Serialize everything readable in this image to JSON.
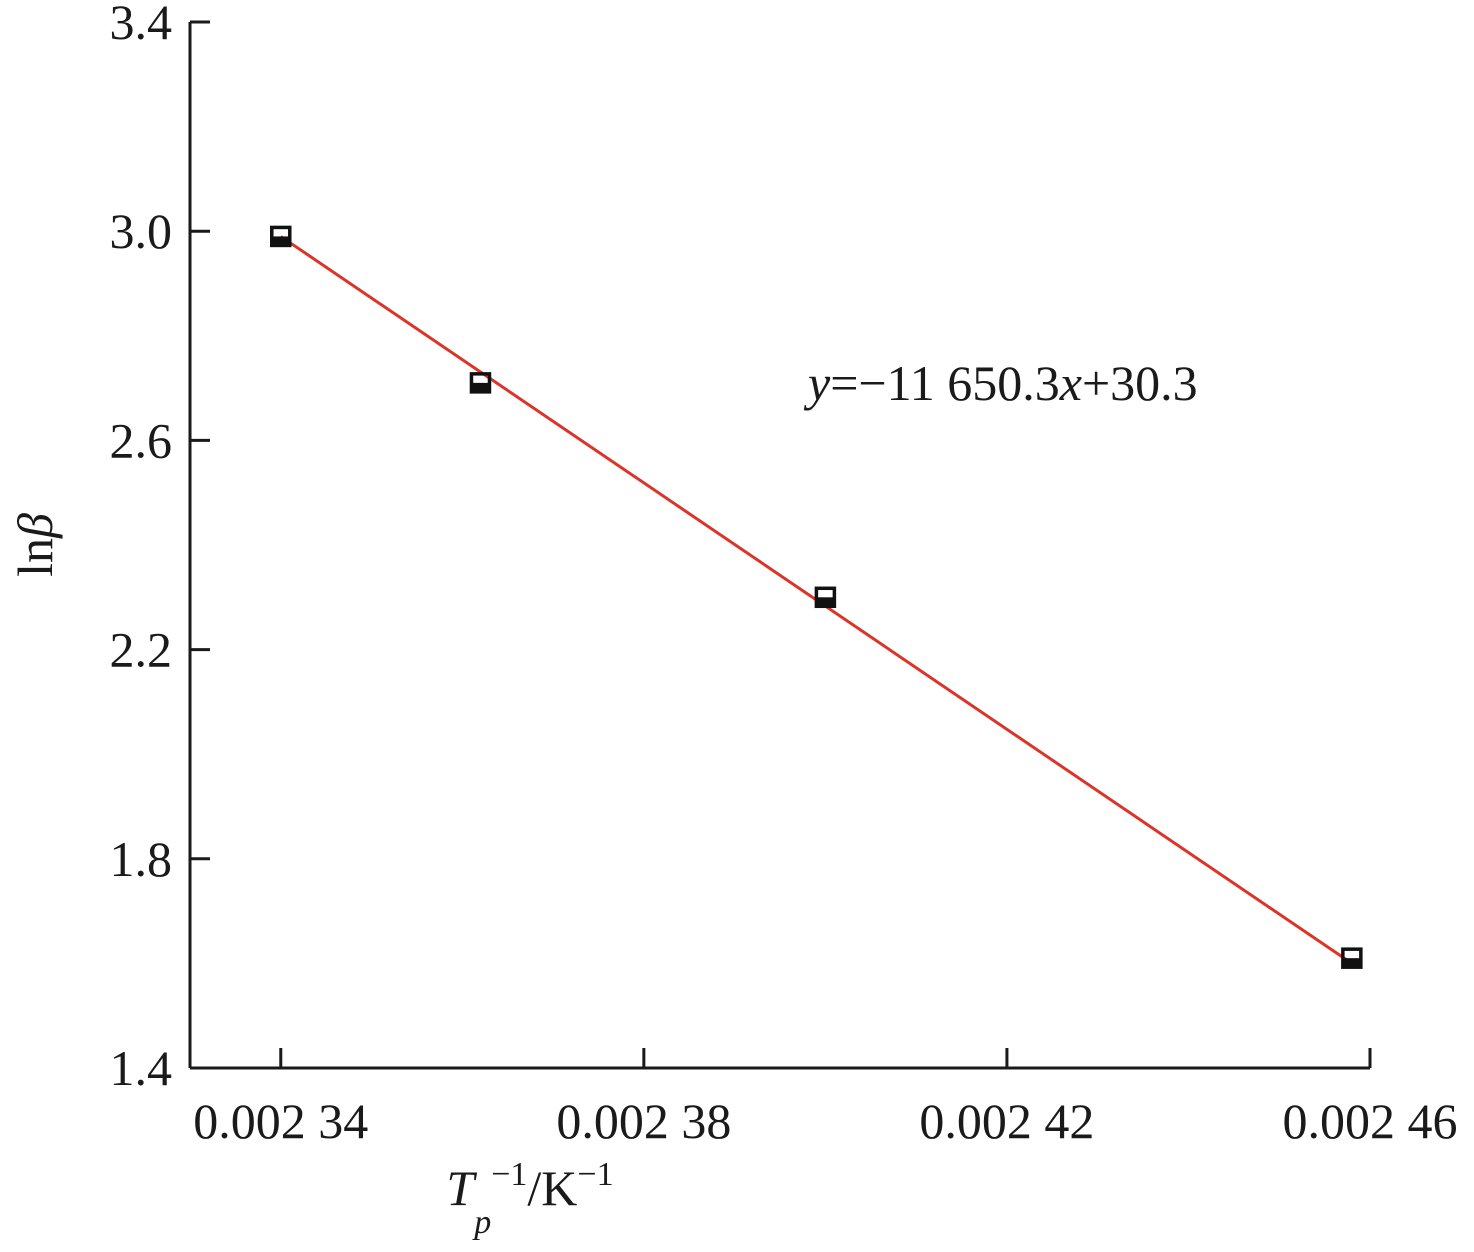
{
  "chart_data": {
    "type": "scatter",
    "x_label": [
      "T",
      "p",
      "−1",
      "/K",
      "−1"
    ],
    "y_label": [
      "ln",
      "β"
    ],
    "annotation": [
      "y",
      "=−11 650.3",
      "x",
      "+30.3"
    ],
    "x": [
      0.00234,
      0.002362,
      0.0024,
      0.002458
    ],
    "values": [
      2.99,
      2.71,
      2.3,
      1.61
    ],
    "marker_color": "#111111",
    "fit_line": {
      "x": [
        0.00234,
        0.002458
      ],
      "values": [
        2.99,
        1.6
      ],
      "color": "#d9362b"
    },
    "xlim": [
      0.00233,
      0.00246
    ],
    "ylim": [
      1.4,
      3.4
    ],
    "xticks": [
      {
        "value": 0.00234,
        "label": "0.002 34"
      },
      {
        "value": 0.00238,
        "label": "0.002 38"
      },
      {
        "value": 0.00242,
        "label": "0.002 42"
      },
      {
        "value": 0.00246,
        "label": "0.002 46"
      }
    ],
    "yticks": [
      1.4,
      1.8,
      2.2,
      2.6,
      {
        "value": 3.0,
        "label": "3.0"
      },
      3.4
    ],
    "grid": false
  }
}
